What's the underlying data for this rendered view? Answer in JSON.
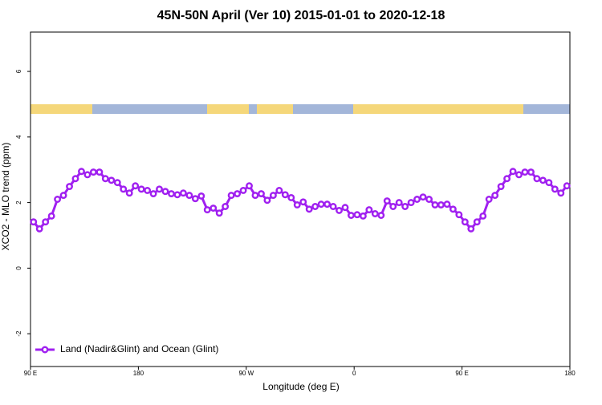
{
  "chart_data": {
    "type": "line",
    "title": "45N-50N April (Ver 10)   2015-01-01 to 2020-12-18",
    "x_label": "Longitude (deg E)",
    "y_label": "XCO2 - MLO trend (ppm)",
    "xlim": [
      90,
      540
    ],
    "ylim": [
      -3,
      7.2
    ],
    "xticks": [
      {
        "value": 90,
        "label": "90 E"
      },
      180,
      {
        "value": 270,
        "label": "90 W"
      },
      {
        "value": 360,
        "label": "0"
      },
      {
        "value": 450,
        "label": "90 E"
      },
      {
        "value": 540,
        "label": "180"
      }
    ],
    "yticks": [
      -2,
      0,
      2,
      4,
      6
    ],
    "legend_position": "bottom-left",
    "x": [
      92.5,
      97.5,
      102.5,
      107.5,
      112.5,
      117.5,
      122.5,
      127.5,
      132.5,
      137.5,
      142.5,
      147.5,
      152.5,
      157.5,
      162.5,
      167.5,
      172.5,
      177.5,
      182.5,
      187.5,
      192.5,
      197.5,
      202.5,
      207.5,
      212.5,
      217.5,
      222.5,
      227.5,
      232.5,
      237.5,
      242.5,
      247.5,
      252.5,
      257.5,
      262.5,
      267.5,
      272.5,
      277.5,
      282.5,
      287.5,
      292.5,
      297.5,
      302.5,
      307.5,
      312.5,
      317.5,
      322.5,
      327.5,
      332.5,
      337.5,
      342.5,
      347.5,
      352.5,
      357.5,
      362.5,
      367.5,
      372.5,
      377.5,
      382.5,
      387.5,
      392.5,
      397.5,
      402.5,
      407.5,
      412.5,
      417.5,
      422.5,
      427.5,
      432.5,
      437.5,
      442.5,
      447.5,
      452.5,
      457.5,
      462.5,
      467.5,
      472.5,
      477.5,
      482.5,
      487.5,
      492.5,
      497.5,
      502.5,
      507.5,
      512.5,
      517.5,
      522.5,
      527.5,
      532.5,
      537.5
    ],
    "series": [
      {
        "name": "Land (Nadir&Glint) and Ocean (Glint)",
        "color": "#a020f0",
        "values": [
          1.41,
          1.2,
          1.41,
          1.59,
          2.1,
          2.22,
          2.49,
          2.73,
          2.95,
          2.85,
          2.93,
          2.93,
          2.73,
          2.68,
          2.61,
          2.41,
          2.29,
          2.51,
          2.41,
          2.37,
          2.27,
          2.41,
          2.34,
          2.27,
          2.24,
          2.29,
          2.22,
          2.12,
          2.2,
          1.78,
          1.83,
          1.68,
          1.88,
          2.22,
          2.27,
          2.37,
          2.51,
          2.22,
          2.27,
          2.07,
          2.22,
          2.37,
          2.24,
          2.15,
          1.93,
          2.02,
          1.8,
          1.88,
          1.95,
          1.95,
          1.88,
          1.76,
          1.85,
          1.61,
          1.63,
          1.59,
          1.78,
          1.66,
          1.61,
          2.05,
          1.88,
          2.0,
          1.88,
          2.0,
          2.1,
          2.17,
          2.1,
          1.93,
          1.93,
          1.95,
          1.8,
          1.63,
          1.41,
          1.2,
          1.41,
          1.59,
          2.1,
          2.22,
          2.49,
          2.73,
          2.95,
          2.85,
          2.93,
          2.93,
          2.73,
          2.68,
          2.61,
          2.41,
          2.29,
          2.51
        ]
      }
    ]
  }
}
